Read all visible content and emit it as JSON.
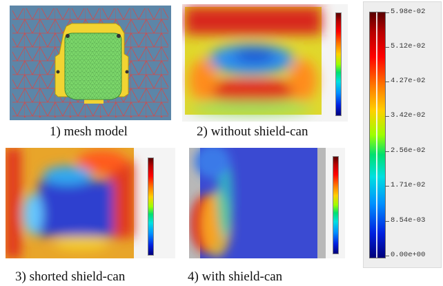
{
  "panels": [
    {
      "caption": "1) mesh model"
    },
    {
      "caption": "2) without shield-can"
    },
    {
      "caption": "3) shorted shield-can"
    },
    {
      "caption": "4) with shield-can"
    }
  ],
  "legend": {
    "labels": [
      "5.98e-02",
      "5.12e-02",
      "4.27e-02",
      "3.42e-02",
      "2.56e-02",
      "1.71e-02",
      "8.54e-03",
      "0.00e+00"
    ]
  },
  "colors": {
    "mesh_background": "#5c86a8",
    "mesh_grid": "#d24a4a",
    "mesh_body": "#7bd66a",
    "mesh_frame": "#f2d432",
    "field_high": "#e3231a",
    "field_mid": "#f2d12a",
    "field_low": "#1a46c8"
  }
}
